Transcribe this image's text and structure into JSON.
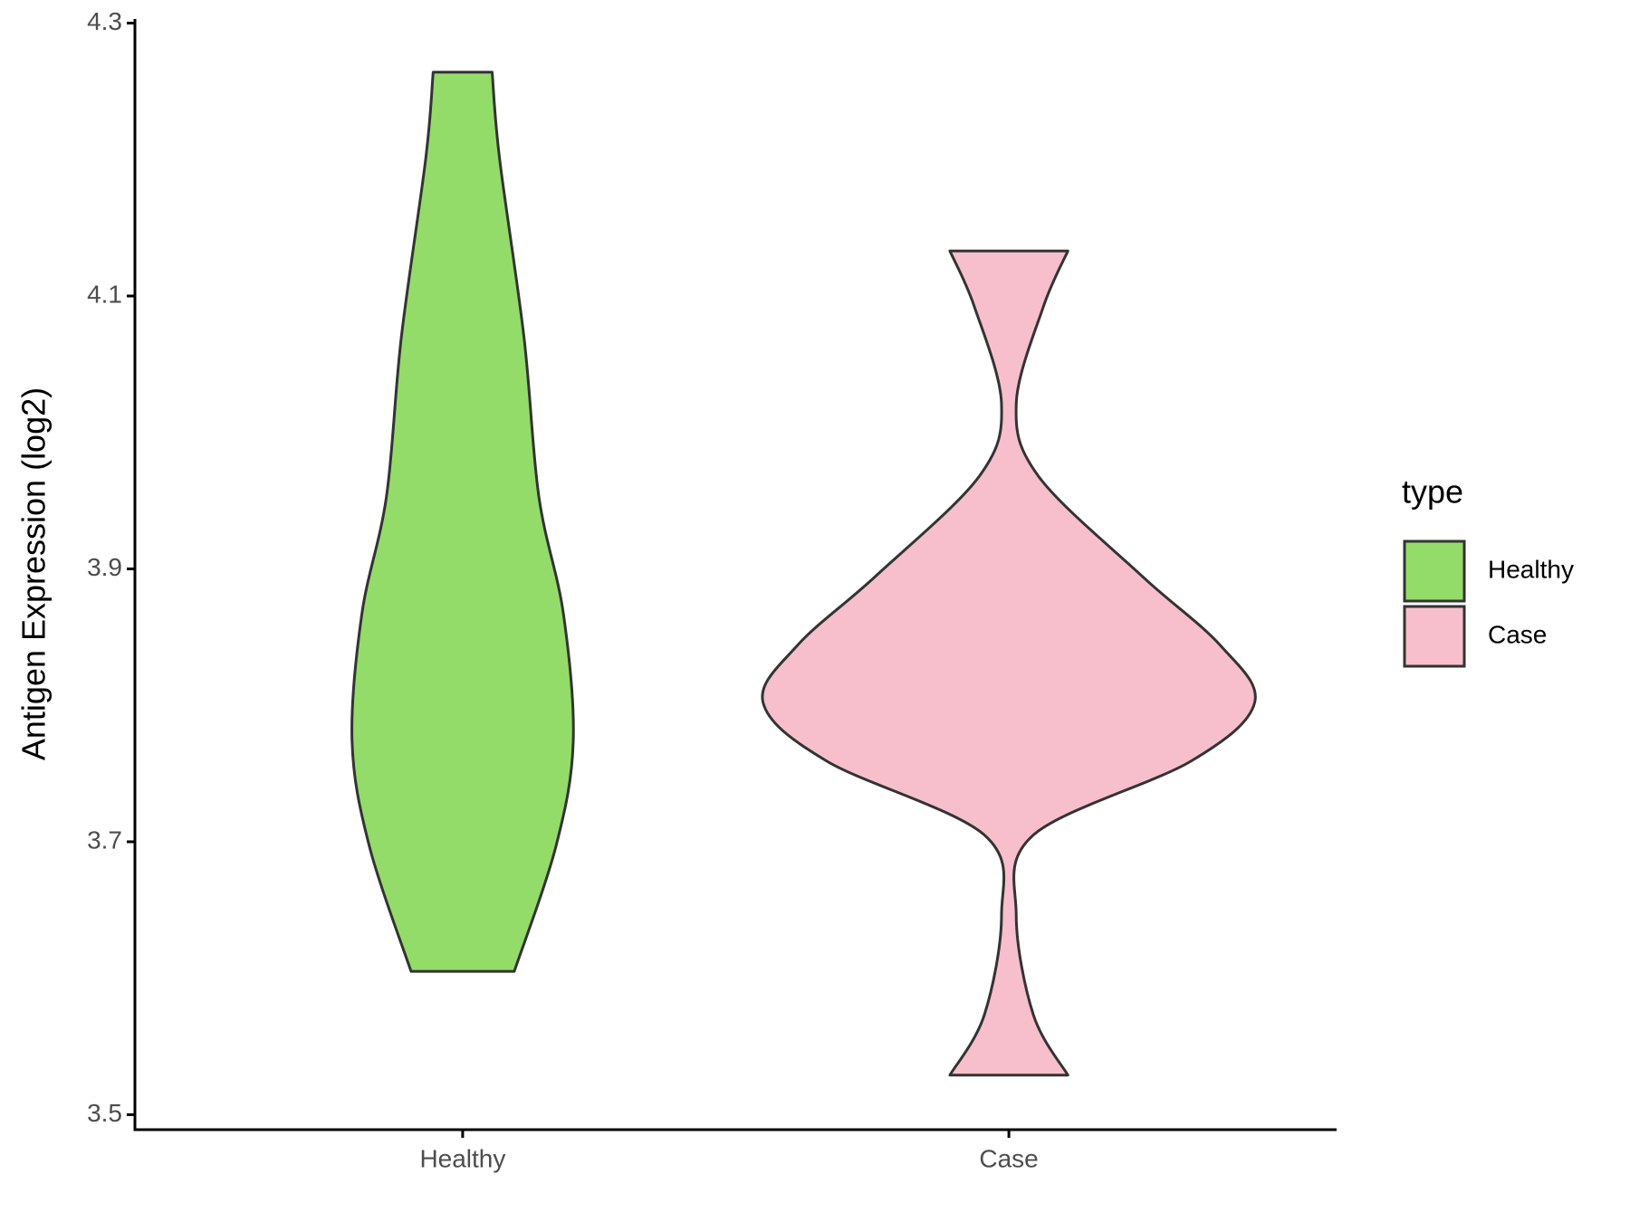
{
  "chart_data": {
    "type": "violin",
    "y_label": "Antigen Expression (log2)",
    "categories": [
      "Healthy",
      "Case"
    ],
    "legend_title": "type",
    "series": [
      {
        "name": "Healthy",
        "color": "#93dc6a",
        "y": [
          4.264,
          4.201,
          4.069,
          3.953,
          3.867,
          3.774,
          3.697,
          3.605
        ],
        "density": [
          0.12,
          0.15,
          0.25,
          0.31,
          0.41,
          0.45,
          0.38,
          0.21
        ]
      },
      {
        "name": "Case",
        "color": "#f7bfcb",
        "y": [
          4.133,
          4.092,
          4.021,
          3.968,
          3.895,
          3.844,
          3.802,
          3.759,
          3.705,
          3.646,
          3.573,
          3.529
        ],
        "density": [
          0.24,
          0.14,
          0.03,
          0.12,
          0.54,
          0.86,
          1,
          0.74,
          0.1,
          0.03,
          0.1,
          0.24
        ]
      }
    ],
    "ylim": [
      3.489,
      4.303
    ],
    "yticks": [
      {
        "value": 3.5,
        "label": "3.5"
      },
      {
        "value": 3.7,
        "label": "3.7"
      },
      {
        "value": 3.9,
        "label": "3.9"
      },
      {
        "value": 4.1,
        "label": "4.1"
      },
      {
        "value": 4.3,
        "label": "4.3"
      }
    ],
    "grid": false,
    "legend_position": "right"
  }
}
